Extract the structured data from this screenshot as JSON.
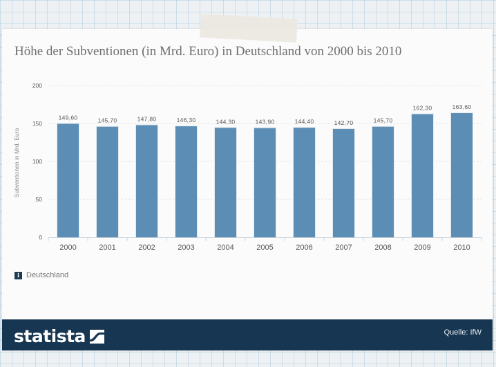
{
  "chart_data": {
    "type": "bar",
    "title": "Höhe der Subventionen (in Mrd. Euro) in Deutschland von 2000 bis 2010",
    "xlabel": "",
    "ylabel": "Subventionen in Mrd. Euro",
    "ylim": [
      0,
      200
    ],
    "yticks": [
      "0",
      "50",
      "100",
      "150",
      "200"
    ],
    "ytick_values": [
      0,
      50,
      100,
      150,
      200
    ],
    "grid": true,
    "legend_position": "bottom-left",
    "categories": [
      "2000",
      "2001",
      "2002",
      "2003",
      "2004",
      "2005",
      "2006",
      "2007",
      "2008",
      "2009",
      "2010"
    ],
    "series": [
      {
        "name": "Deutschland",
        "color": "#5b8db5",
        "values": [
          149.6,
          145.7,
          147.8,
          146.3,
          144.3,
          143.9,
          144.4,
          142.7,
          145.7,
          162.3,
          163.6
        ],
        "labels": [
          "149,60",
          "145,70",
          "147,80",
          "146,30",
          "144,30",
          "143,90",
          "144,40",
          "142,70",
          "145,70",
          "162,30",
          "163,60"
        ]
      }
    ]
  },
  "legend": {
    "label": "Deutschland",
    "icon_glyph": "i",
    "icon": "info-icon"
  },
  "footer": {
    "brand": "statista",
    "source": "Quelle: IfW",
    "logo_icon": "statista-logo-icon",
    "bg_color": "#173651"
  }
}
